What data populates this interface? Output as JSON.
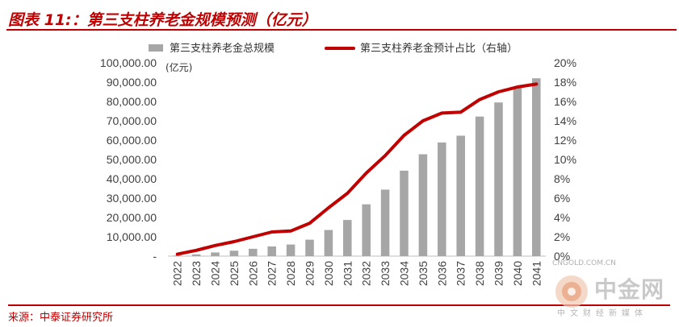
{
  "title": "图表 11:：第三支柱养老金规模预测（亿元）",
  "source": "来源：中泰证券研究所",
  "watermark": {
    "url": "CNGOLD.COM.CN",
    "name": "中金网",
    "subtitle": "中文财经新媒体"
  },
  "chart_data": {
    "type": "bar",
    "categories": [
      "2022",
      "2023",
      "2024",
      "2025",
      "2026",
      "2027",
      "2028",
      "2029",
      "2030",
      "2031",
      "2032",
      "2033",
      "2034",
      "2035",
      "2036",
      "2037",
      "2038",
      "2039",
      "2040",
      "2041"
    ],
    "series": [
      {
        "name": "第三支柱养老金总规模",
        "type": "bar",
        "axis": "left",
        "color": "#a6a6a6",
        "values": [
          300,
          900,
          1900,
          2800,
          3800,
          5000,
          6000,
          8500,
          13500,
          18700,
          26800,
          34400,
          44200,
          52700,
          58800,
          62300,
          72200,
          79500,
          87000,
          92000
        ]
      },
      {
        "name": "第三支柱养老金预计占比（右轴）",
        "type": "line",
        "axis": "right",
        "color": "#c00000",
        "values": [
          0.2,
          0.6,
          1.1,
          1.5,
          2.0,
          2.5,
          2.6,
          3.4,
          5.0,
          6.5,
          8.6,
          10.4,
          12.5,
          14.0,
          14.8,
          14.9,
          16.2,
          17.0,
          17.5,
          17.8
        ]
      }
    ],
    "y_left": {
      "label": "(亿元)",
      "min": 0,
      "max": 100000,
      "ticks": [
        "-",
        "10,000.00",
        "20,000.00",
        "30,000.00",
        "40,000.00",
        "50,000.00",
        "60,000.00",
        "70,000.00",
        "80,000.00",
        "90,000.00",
        "100,000.00"
      ]
    },
    "y_right": {
      "min": 0,
      "max": 20,
      "ticks": [
        "0%",
        "2%",
        "4%",
        "6%",
        "8%",
        "10%",
        "12%",
        "14%",
        "16%",
        "18%",
        "20%"
      ]
    },
    "grid": false,
    "legend_position": "top"
  }
}
